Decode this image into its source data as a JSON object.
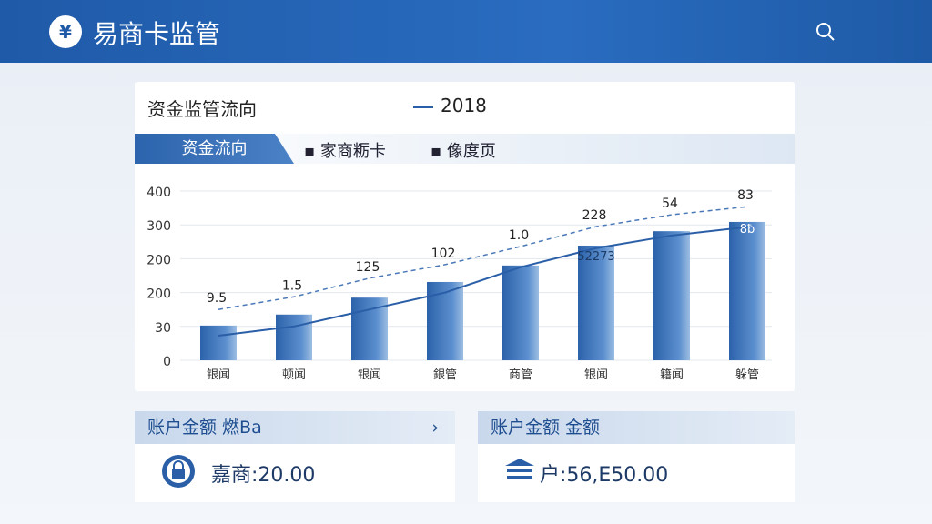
{
  "header": {
    "title": "易商卡监管"
  },
  "panel": {
    "title": "资金监管流向",
    "legend": "2018",
    "tabs": [
      "资金流向",
      "家商粝卡",
      "像度页"
    ]
  },
  "chart": {
    "type": "bar",
    "y_labels": [
      "400",
      "300",
      "200",
      "200",
      "30",
      "0"
    ],
    "ylim": [
      0,
      400
    ],
    "categories": [
      "银闻",
      "顿闻",
      "银闻",
      "銀管",
      "商管",
      "银闻",
      "籍闻",
      "躲管"
    ],
    "bars": [
      82,
      108,
      148,
      185,
      224,
      271,
      305,
      327
    ],
    "line": [
      58,
      80,
      120,
      160,
      220,
      265,
      295,
      315
    ],
    "dashed": [
      120,
      150,
      194,
      226,
      269,
      316,
      344,
      363
    ],
    "dashed_labels": [
      "9.5",
      "1.5",
      "125",
      "102",
      "1.0",
      "228",
      "54",
      "83"
    ],
    "inner_labels": [
      "52273",
      "8ƀ"
    ]
  },
  "cards": [
    {
      "title": "账户金额  燃Ba",
      "value": "嘉商:20.00"
    },
    {
      "title": "账户金额  金额",
      "value": "户:56,E50.00"
    }
  ]
}
